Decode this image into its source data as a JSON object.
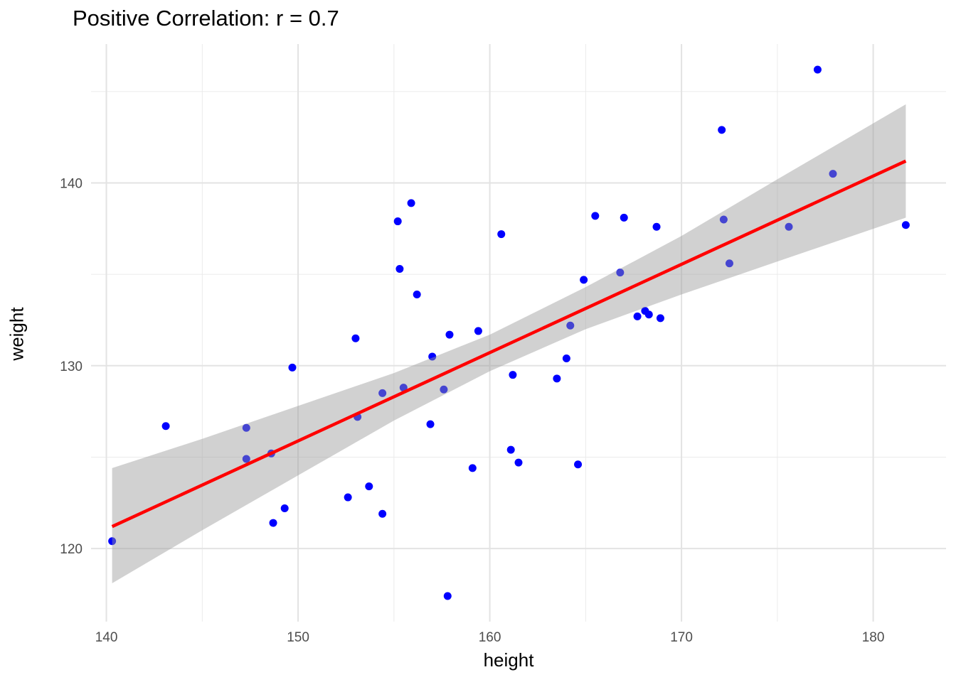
{
  "chart_data": {
    "type": "scatter",
    "title": "Positive Correlation: r = 0.7",
    "xlabel": "height",
    "ylabel": "weight",
    "xlim": [
      139.2,
      183.8
    ],
    "ylim": [
      116.0,
      147.6
    ],
    "x_ticks": [
      140,
      150,
      160,
      170,
      180
    ],
    "y_ticks": [
      120,
      130,
      140
    ],
    "grid": true,
    "colors": {
      "points": "#0000ff",
      "fit_line": "#ff0000",
      "band": "#999999"
    },
    "points": [
      [
        140.3,
        120.4
      ],
      [
        143.1,
        126.7
      ],
      [
        147.3,
        126.6
      ],
      [
        147.3,
        124.9
      ],
      [
        148.6,
        125.2
      ],
      [
        148.7,
        121.4
      ],
      [
        149.3,
        122.2
      ],
      [
        149.7,
        129.9
      ],
      [
        152.6,
        122.8
      ],
      [
        153.0,
        131.5
      ],
      [
        153.1,
        127.2
      ],
      [
        153.7,
        123.4
      ],
      [
        154.4,
        128.5
      ],
      [
        154.4,
        121.9
      ],
      [
        155.2,
        137.9
      ],
      [
        155.3,
        135.3
      ],
      [
        155.5,
        128.8
      ],
      [
        155.9,
        138.9
      ],
      [
        156.2,
        133.9
      ],
      [
        156.9,
        126.8
      ],
      [
        157.0,
        130.5
      ],
      [
        157.6,
        128.7
      ],
      [
        157.8,
        117.4
      ],
      [
        157.9,
        131.7
      ],
      [
        159.1,
        124.4
      ],
      [
        159.4,
        131.9
      ],
      [
        160.6,
        137.2
      ],
      [
        161.1,
        125.4
      ],
      [
        161.2,
        129.5
      ],
      [
        161.5,
        124.7
      ],
      [
        163.5,
        129.3
      ],
      [
        164.0,
        130.4
      ],
      [
        164.2,
        132.2
      ],
      [
        164.6,
        124.6
      ],
      [
        164.9,
        134.7
      ],
      [
        165.5,
        138.2
      ],
      [
        166.8,
        135.1
      ],
      [
        167.0,
        138.1
      ],
      [
        167.7,
        132.7
      ],
      [
        168.1,
        133.0
      ],
      [
        168.3,
        132.8
      ],
      [
        168.7,
        137.6
      ],
      [
        168.9,
        132.6
      ],
      [
        172.1,
        142.9
      ],
      [
        172.2,
        138.0
      ],
      [
        172.5,
        135.6
      ],
      [
        175.6,
        137.6
      ],
      [
        177.1,
        146.2
      ],
      [
        177.9,
        140.5
      ],
      [
        181.7,
        137.7
      ]
    ],
    "fit": {
      "x": [
        140.3,
        181.7
      ],
      "y": [
        121.2,
        141.2
      ]
    },
    "confidence_band": {
      "x": [
        140.3,
        145,
        150,
        155,
        160,
        165,
        170,
        175,
        181.7
      ],
      "lower": [
        118.1,
        121.0,
        124.0,
        127.0,
        129.7,
        132.0,
        133.9,
        135.7,
        138.1
      ],
      "upper": [
        124.4,
        126.0,
        127.8,
        129.6,
        131.7,
        134.3,
        137.1,
        140.2,
        144.3
      ]
    }
  }
}
